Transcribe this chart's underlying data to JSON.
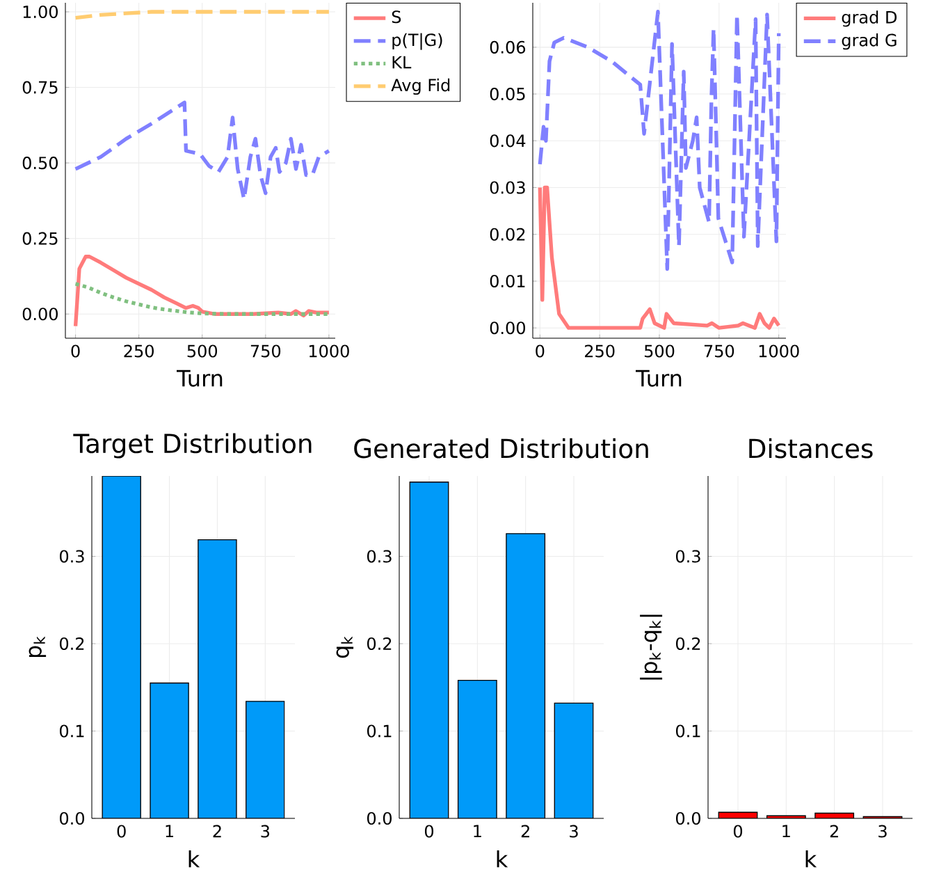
{
  "chart_data": [
    {
      "type": "line",
      "xlabel": "Turn",
      "xlim": [
        -40,
        1025
      ],
      "ylim": [
        -0.08,
        1.03
      ],
      "xticks": [
        0,
        250,
        500,
        750,
        1000
      ],
      "yticks": [
        {
          "value": 0,
          "label": "0.00"
        },
        {
          "value": 0.25,
          "label": "0.25"
        },
        {
          "value": 0.5,
          "label": "0.50"
        },
        {
          "value": 0.75,
          "label": "0.75"
        },
        {
          "value": 1,
          "label": "1.00"
        }
      ],
      "grid": true,
      "legend": "top right",
      "series": [
        {
          "name": "S",
          "color": "#ff7b7b",
          "line_style": "solid",
          "x": [
            0,
            15,
            40,
            55,
            100,
            150,
            200,
            250,
            300,
            350,
            400,
            436,
            463,
            485,
            500,
            550,
            600,
            700,
            800,
            850,
            870,
            900,
            920,
            950,
            1000
          ],
          "values": [
            -0.04,
            0.15,
            0.19,
            0.19,
            0.17,
            0.145,
            0.12,
            0.1,
            0.08,
            0.055,
            0.035,
            0.02,
            0.027,
            0.02,
            0.008,
            0,
            0,
            0,
            0.005,
            0,
            0.01,
            -0.005,
            0.01,
            0.005,
            0.005
          ]
        },
        {
          "name": "p(T|G)",
          "color": "#8080ff",
          "line_style": "dashed",
          "x": [
            0,
            100,
            200,
            300,
            430,
            436,
            491,
            527,
            564,
            600,
            620,
            640,
            665,
            690,
            710,
            730,
            750,
            770,
            790,
            805,
            830,
            850,
            870,
            890,
            910,
            935,
            960,
            1000
          ],
          "values": [
            0.48,
            0.52,
            0.58,
            0.63,
            0.7,
            0.54,
            0.53,
            0.49,
            0.47,
            0.52,
            0.65,
            0.48,
            0.38,
            0.52,
            0.58,
            0.46,
            0.4,
            0.52,
            0.55,
            0.47,
            0.5,
            0.58,
            0.48,
            0.56,
            0.46,
            0.46,
            0.52,
            0.54
          ]
        },
        {
          "name": "KL",
          "color": "#80c080",
          "line_style": "dotted",
          "x": [
            0,
            50,
            100,
            150,
            200,
            250,
            300,
            350,
            400,
            450,
            500,
            600,
            1000
          ],
          "values": [
            0.1,
            0.088,
            0.07,
            0.055,
            0.042,
            0.032,
            0.022,
            0.015,
            0.01,
            0.005,
            0.002,
            0,
            0
          ]
        },
        {
          "name": "Avg Fid",
          "color": "#ffcc70",
          "line_style": "dashed",
          "x": [
            0,
            100,
            200,
            300,
            1000
          ],
          "values": [
            0.98,
            0.99,
            0.995,
            1.0,
            1.0
          ]
        }
      ]
    },
    {
      "type": "line",
      "xlabel": "Turn",
      "xlim": [
        -30,
        1030
      ],
      "ylim": [
        -0.0022,
        0.0695
      ],
      "xticks": [
        0,
        250,
        500,
        750,
        1000
      ],
      "yticks": [
        {
          "value": 0,
          "label": "0.00"
        },
        {
          "value": 0.01,
          "label": "0.01"
        },
        {
          "value": 0.02,
          "label": "0.02"
        },
        {
          "value": 0.03,
          "label": "0.03"
        },
        {
          "value": 0.04,
          "label": "0.04"
        },
        {
          "value": 0.05,
          "label": "0.05"
        },
        {
          "value": 0.06,
          "label": "0.06"
        }
      ],
      "grid": true,
      "legend": "top right",
      "series": [
        {
          "name": "grad D",
          "color": "#ff7b7b",
          "line_style": "solid",
          "x": [
            0,
            10,
            20,
            30,
            50,
            80,
            120,
            420,
            430,
            460,
            480,
            520,
            530,
            560,
            700,
            720,
            750,
            830,
            850,
            900,
            920,
            940,
            960,
            980,
            1000
          ],
          "values": [
            0.03,
            0.006,
            0.03,
            0.03,
            0.015,
            0.003,
            0,
            0,
            0.002,
            0.004,
            0.001,
            0,
            0.003,
            0.001,
            0.0005,
            0.001,
            0,
            0.0005,
            0.001,
            0,
            0.003,
            0.001,
            0,
            0.002,
            0.0005
          ]
        },
        {
          "name": "grad G",
          "color": "#8080ff",
          "line_style": "dashed",
          "x": [
            0,
            15,
            25,
            40,
            60,
            100,
            200,
            300,
            420,
            436,
            494,
            533,
            553,
            582,
            602,
            611,
            640,
            656,
            669,
            708,
            718,
            727,
            747,
            805,
            825,
            854,
            903,
            912,
            951,
            990,
            1000
          ],
          "values": [
            0.035,
            0.043,
            0.04,
            0.057,
            0.061,
            0.062,
            0.06,
            0.057,
            0.052,
            0.0415,
            0.0676,
            0.0126,
            0.0607,
            0.0175,
            0.0548,
            0.0342,
            0.04,
            0.045,
            0.03,
            0.0226,
            0.049,
            0.064,
            0.0234,
            0.014,
            0.067,
            0.0195,
            0.066,
            0.0175,
            0.067,
            0.0185,
            0.063
          ]
        }
      ]
    },
    {
      "type": "bar",
      "title": "Target Distribution",
      "xlabel": "k",
      "ylabel": "p$_{k}$",
      "categories": [
        "0",
        "1",
        "2",
        "3"
      ],
      "values": [
        0.392,
        0.155,
        0.319,
        0.134
      ],
      "color": "#009af9",
      "ylim": [
        0,
        0.392
      ],
      "yticks": [
        {
          "value": 0,
          "label": "0.0"
        },
        {
          "value": 0.1,
          "label": "0.1"
        },
        {
          "value": 0.2,
          "label": "0.2"
        },
        {
          "value": 0.3,
          "label": "0.3"
        }
      ],
      "grid": true
    },
    {
      "type": "bar",
      "title": "Generated Distribution",
      "xlabel": "k",
      "ylabel": "q$_{k}$",
      "categories": [
        "0",
        "1",
        "2",
        "3"
      ],
      "values": [
        0.385,
        0.158,
        0.326,
        0.132
      ],
      "color": "#009af9",
      "ylim": [
        0,
        0.392
      ],
      "yticks": [
        {
          "value": 0,
          "label": "0.0"
        },
        {
          "value": 0.1,
          "label": "0.1"
        },
        {
          "value": 0.2,
          "label": "0.2"
        },
        {
          "value": 0.3,
          "label": "0.3"
        }
      ],
      "grid": true
    },
    {
      "type": "bar",
      "title": "Distances",
      "xlabel": "k",
      "ylabel": "|p$_{k}$-q$_{k}$|",
      "categories": [
        "0",
        "1",
        "2",
        "3"
      ],
      "values": [
        0.007,
        0.003,
        0.006,
        0.002
      ],
      "color": "#ff0000",
      "ylim": [
        0,
        0.392
      ],
      "yticks": [
        {
          "value": 0,
          "label": "0.0"
        },
        {
          "value": 0.1,
          "label": "0.1"
        },
        {
          "value": 0.2,
          "label": "0.2"
        },
        {
          "value": 0.3,
          "label": "0.3"
        }
      ],
      "grid": true
    }
  ]
}
